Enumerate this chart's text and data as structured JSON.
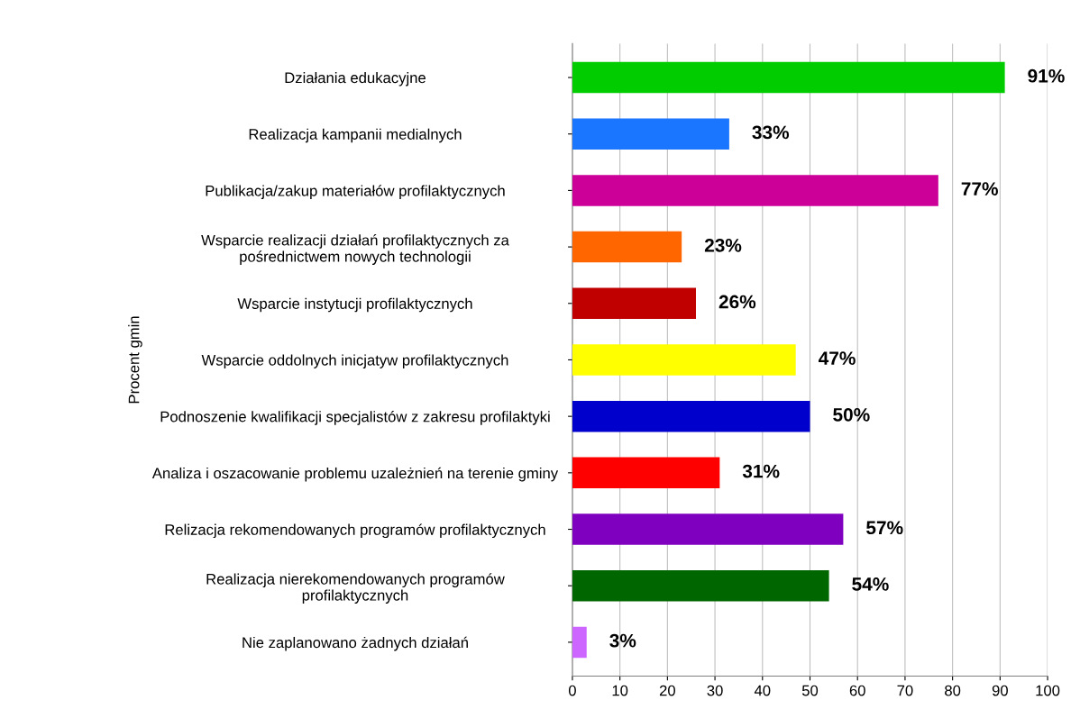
{
  "chart_data": {
    "type": "bar",
    "orientation": "horizontal",
    "ylabel": "Procent gmin",
    "categories": [
      "Działania edukacyjne",
      "Realizacja kampanii medialnych",
      "Publikacja/zakup materiałów profilaktycznych",
      "Wsparcie realizacji działań profilaktycznych za\npośrednictwem nowych technologii",
      "Wsparcie instytucji profilaktycznych",
      "Wsparcie oddolnych inicjatyw profilaktycznych",
      "Podnoszenie kwalifikacji specjalistów z zakresu profilaktyki",
      "Analiza i oszacowanie problemu uzależnień na terenie gminy",
      "Relizacja rekomendowanych programów profilaktycznych",
      "Realizacja nierekomendowanych programów\nprofilaktycznych",
      "Nie zaplanowano żadnych działań"
    ],
    "values": [
      91,
      33,
      77,
      23,
      26,
      47,
      50,
      31,
      57,
      54,
      3
    ],
    "value_labels": [
      "91%",
      "33%",
      "77%",
      "23%",
      "26%",
      "47%",
      "50%",
      "31%",
      "57%",
      "54%",
      "3%"
    ],
    "colors": [
      "#00cc00",
      "#1a75ff",
      "#cc0099",
      "#ff6600",
      "#c00000",
      "#ffff00",
      "#0000cc",
      "#ff0000",
      "#8000c0",
      "#006600",
      "#cc66ff"
    ],
    "xlim": [
      0,
      100
    ],
    "xticks": [
      0,
      10,
      20,
      30,
      40,
      50,
      60,
      70,
      80,
      90,
      100
    ],
    "grid": "x",
    "legend": false
  }
}
